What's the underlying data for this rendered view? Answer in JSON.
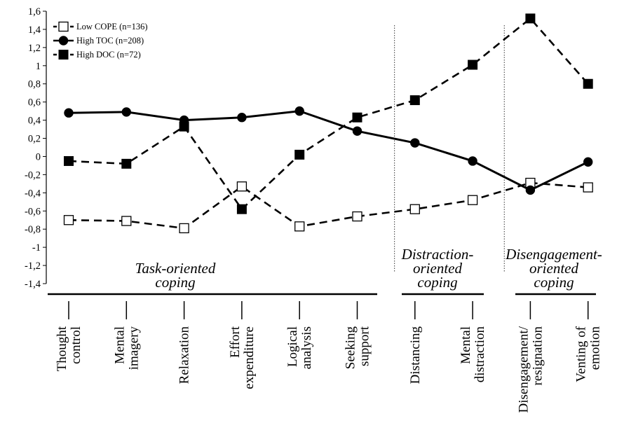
{
  "chart_data": {
    "type": "line",
    "categories": [
      [
        "Thought",
        "control"
      ],
      [
        "Mental",
        "imagery"
      ],
      [
        "Relaxation"
      ],
      [
        "Effort",
        "expenditure"
      ],
      [
        "Logical",
        "analysis"
      ],
      [
        "Seeking",
        "support"
      ],
      [
        "Distancing"
      ],
      [
        "Mental",
        "distraction"
      ],
      [
        "Disengagement/",
        "resignation"
      ],
      [
        "Venting of",
        "emotion"
      ]
    ],
    "y_ticks": [
      "1,6",
      "1,4",
      "1,2",
      "1",
      "0,8",
      "0,6",
      "0,4",
      "0,2",
      "0",
      "-0,2",
      "-0,4",
      "-0,6",
      "-0,8",
      "-1",
      "-1,2",
      "-1,4"
    ],
    "ylim": [
      -1.4,
      1.6
    ],
    "series": [
      {
        "name": "Low COPE (n=136)",
        "marker": "open-square",
        "line": "dashed",
        "values": [
          -0.7,
          -0.71,
          -0.79,
          -0.33,
          -0.77,
          -0.66,
          -0.58,
          -0.48,
          -0.29,
          -0.34
        ]
      },
      {
        "name": "High TOC (n=208)",
        "marker": "filled-circle",
        "line": "solid",
        "values": [
          0.48,
          0.49,
          0.4,
          0.43,
          0.5,
          0.28,
          0.15,
          -0.05,
          -0.37,
          -0.06
        ]
      },
      {
        "name": "High DOC (n=72)",
        "marker": "filled-square",
        "line": "dashed",
        "values": [
          -0.05,
          -0.08,
          0.33,
          -0.58,
          0.02,
          0.43,
          0.62,
          1.01,
          1.52,
          0.8
        ]
      }
    ],
    "groups": [
      {
        "lines": [
          "Task-oriented",
          "coping"
        ],
        "from": 0,
        "to": 5
      },
      {
        "lines": [
          "Distraction-",
          "oriented",
          "coping"
        ],
        "from": 6,
        "to": 7
      },
      {
        "lines": [
          "Disengagement-",
          "oriented",
          "coping"
        ],
        "from": 8,
        "to": 9
      }
    ],
    "legend_placement": "top-left",
    "grid": false
  }
}
